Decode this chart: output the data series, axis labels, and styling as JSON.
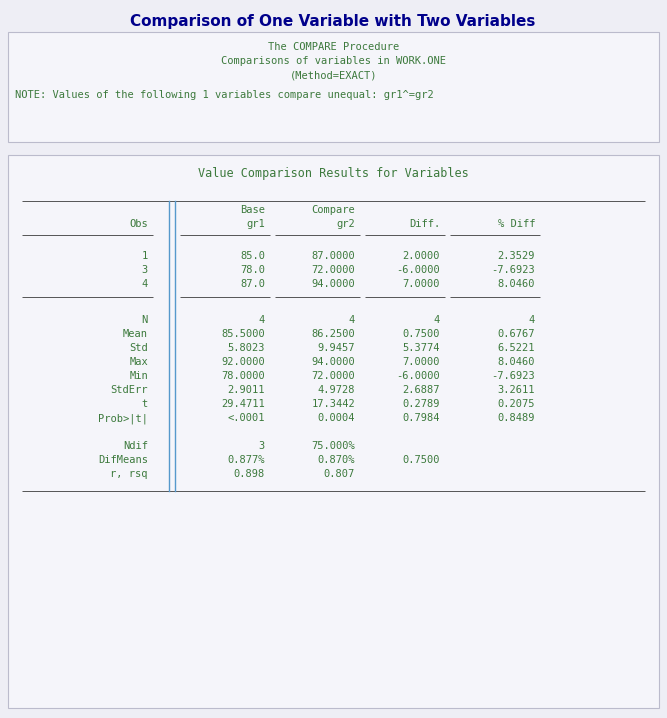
{
  "title": "Comparison of One Variable with Two Variables",
  "title_color": "#00008B",
  "title_fontsize": 11,
  "box1_lines": [
    "The COMPARE Procedure",
    "Comparisons of variables in WORK.ONE",
    "(Method=EXACT)"
  ],
  "box1_note": "NOTE: Values of the following 1 variables compare unequal: gr1^=gr2",
  "mono_color": "#3D7A3D",
  "box2_subtitle": "Value Comparison Results for Variables",
  "box2_subtitle_color": "#3D7A3D",
  "data_rows": [
    [
      "1",
      "85.0",
      "87.0000",
      "2.0000",
      "2.3529"
    ],
    [
      "3",
      "78.0",
      "72.0000",
      "-6.0000",
      "-7.6923"
    ],
    [
      "4",
      "87.0",
      "94.0000",
      "7.0000",
      "8.0460"
    ]
  ],
  "stat_rows": [
    [
      "N",
      "4",
      "4",
      "4",
      "4"
    ],
    [
      "Mean",
      "85.5000",
      "86.2500",
      "0.7500",
      "0.6767"
    ],
    [
      "Std",
      "5.8023",
      "9.9457",
      "5.3774",
      "6.5221"
    ],
    [
      "Max",
      "92.0000",
      "94.0000",
      "7.0000",
      "8.0460"
    ],
    [
      "Min",
      "78.0000",
      "72.0000",
      "-6.0000",
      "-7.6923"
    ],
    [
      "StdErr",
      "2.9011",
      "4.9728",
      "2.6887",
      "3.2611"
    ],
    [
      "t",
      "29.4711",
      "17.3442",
      "0.2789",
      "0.2075"
    ],
    [
      "Prob>|t|",
      "<.0001",
      "0.0004",
      "0.7984",
      "0.8489"
    ]
  ],
  "extra_rows": [
    [
      "Ndif",
      "3",
      "75.000%",
      "",
      ""
    ],
    [
      "DifMeans",
      "0.877%",
      "0.870%",
      "0.7500",
      ""
    ],
    [
      "r, rsq",
      "0.898",
      "0.807",
      "",
      ""
    ]
  ],
  "bg_color": "#EEEEF5",
  "box_bg": "#F5F5FA",
  "border_color": "#BBBBCC",
  "vbar_color": "#5599CC",
  "hline_color": "#555555"
}
